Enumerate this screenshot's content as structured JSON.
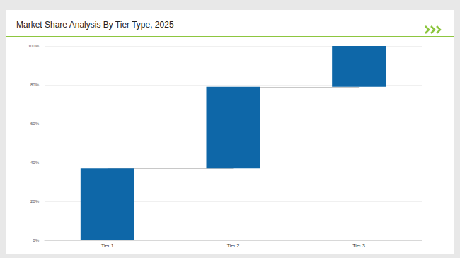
{
  "chart_data": {
    "type": "waterfall",
    "title": "Market Share Analysis By Tier Type, 2025",
    "categories": [
      "Tier 1",
      "Tier 2",
      "Tier 3"
    ],
    "values": [
      37,
      42,
      21
    ],
    "color": "#0e67a8",
    "ylim": [
      0,
      100
    ],
    "yticks": [
      {
        "value": 0,
        "label": "0%"
      },
      {
        "value": 20,
        "label": "20%"
      },
      {
        "value": 40,
        "label": "40%"
      },
      {
        "value": 60,
        "label": "60%"
      },
      {
        "value": 80,
        "label": "80%"
      },
      {
        "value": 100,
        "label": "100%"
      }
    ],
    "grid": true,
    "data_labels": false
  }
}
